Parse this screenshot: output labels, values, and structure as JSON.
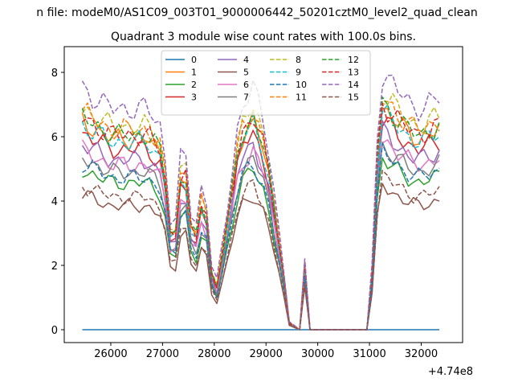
{
  "chart_data": {
    "type": "line",
    "suptitle": "n file: modeM0/AS1C09_003T01_9000006442_50201cztM0_level2_quad_clean",
    "title": "Quadrant 3 module wise count rates with 100.0s bins.",
    "xlabel": "",
    "ylabel": "",
    "offset_label": "+4.74e8",
    "xlim": [
      25100,
      32800
    ],
    "ylim": [
      -0.4,
      8.8
    ],
    "x_ticks": [
      26000,
      27000,
      28000,
      29000,
      30000,
      31000,
      32000
    ],
    "x_tick_labels": [
      "26000",
      "27000",
      "28000",
      "29000",
      "30000",
      "31000",
      "32000"
    ],
    "y_ticks": [
      0,
      2,
      4,
      6,
      8
    ],
    "y_tick_labels": [
      "0",
      "2",
      "4",
      "6",
      "8"
    ],
    "grid": false,
    "legend_position": "top-center",
    "legend_columns": 4,
    "anchors_x": [
      25450,
      26000,
      26700,
      27000,
      27200,
      27400,
      27600,
      27800,
      28000,
      28200,
      28500,
      28750,
      29000,
      29300,
      29450,
      29650,
      29700,
      29850,
      30000,
      31000,
      31200,
      31500,
      31800,
      32000,
      32400
    ],
    "anchors_y": [
      6.0,
      5.5,
      5.5,
      5.0,
      2.0,
      5.0,
      2.2,
      4.0,
      0.8,
      2.5,
      5.5,
      6.0,
      5.0,
      2.0,
      0.2,
      0.0,
      2.8,
      0.0,
      0.0,
      0.0,
      6.5,
      6.0,
      5.6,
      5.5,
      5.8
    ],
    "series": [
      {
        "name": "0",
        "color": "#1f77b4",
        "dash": "solid",
        "scale": 0.0
      },
      {
        "name": "1",
        "color": "#ff7f0e",
        "dash": "solid",
        "scale": 1.08
      },
      {
        "name": "2",
        "color": "#2ca02c",
        "dash": "solid",
        "scale": 0.83
      },
      {
        "name": "3",
        "color": "#d62728",
        "dash": "solid",
        "scale": 1.02
      },
      {
        "name": "4",
        "color": "#9467bd",
        "dash": "solid",
        "scale": 0.96
      },
      {
        "name": "5",
        "color": "#8c564b",
        "dash": "solid",
        "scale": 0.7
      },
      {
        "name": "6",
        "color": "#e377c2",
        "dash": "solid",
        "scale": 0.93
      },
      {
        "name": "7",
        "color": "#7f7f7f",
        "dash": "solid",
        "scale": 0.89
      },
      {
        "name": "8",
        "color": "#bcbd22",
        "dash": "dashed",
        "scale": 1.15
      },
      {
        "name": "9",
        "color": "#17becf",
        "dash": "dashed",
        "scale": 1.06
      },
      {
        "name": "10",
        "color": "#1f77b4",
        "dash": "dashed",
        "scale": 0.86
      },
      {
        "name": "11",
        "color": "#ff7f0e",
        "dash": "dashed",
        "scale": 1.13
      },
      {
        "name": "12",
        "color": "#2ca02c",
        "dash": "dashed",
        "scale": 1.1
      },
      {
        "name": "13",
        "color": "#d62728",
        "dash": "dashed",
        "scale": 1.1
      },
      {
        "name": "14",
        "color": "#9467bd",
        "dash": "dashed",
        "scale": 1.25
      },
      {
        "name": "15",
        "color": "#8c564b",
        "dash": "dashed",
        "scale": 0.75
      }
    ]
  }
}
